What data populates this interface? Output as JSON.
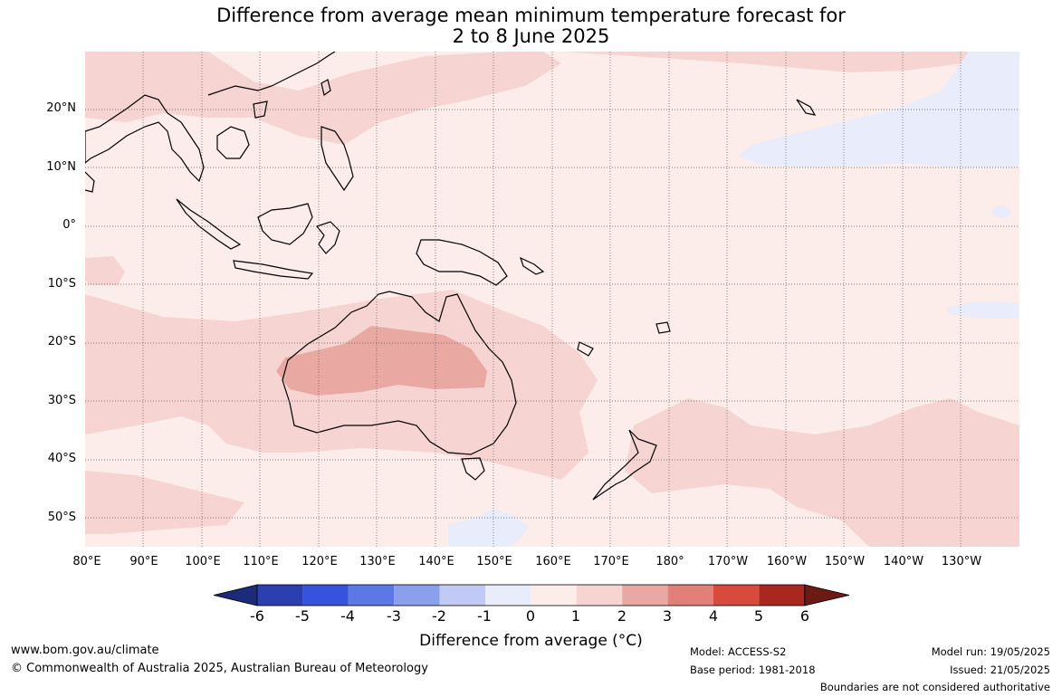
{
  "title": {
    "line1": "Difference from average mean minimum temperature forecast for",
    "line2": "2 to 8 June 2025"
  },
  "latitude_labels": [
    "20°N",
    "10°N",
    "0°",
    "10°S",
    "20°S",
    "30°S",
    "40°S",
    "50°S"
  ],
  "longitude_labels": [
    "80°E",
    "90°E",
    "100°E",
    "110°E",
    "120°E",
    "130°E",
    "140°E",
    "150°E",
    "160°E",
    "170°E",
    "180°",
    "170°W",
    "160°W",
    "150°W",
    "140°W",
    "130°W"
  ],
  "colorbar": {
    "ticks": [
      "-6",
      "-5",
      "-4",
      "-3",
      "-2",
      "-1",
      "0",
      "1",
      "2",
      "3",
      "4",
      "5",
      "6"
    ],
    "colors": [
      "#1c2a7a",
      "#2b3fb0",
      "#3553dc",
      "#5c78e6",
      "#8aa0ec",
      "#c0caf4",
      "#e9ecfb",
      "#fcecea",
      "#f6d4d1",
      "#eaa8a2",
      "#e08078",
      "#d84a3c",
      "#a82820",
      "#6e1a14"
    ],
    "title": "Difference from average (°C)"
  },
  "footer": {
    "website": "www.bom.gov.au/climate",
    "copyright": "© Commonwealth of Australia 2025, Australian Bureau of Meteorology",
    "model": "Model: ACCESS-S2",
    "base_period": "Base period: 1981-2018",
    "model_run": "Model run: 19/05/2025",
    "issued": "Issued: 21/05/2025",
    "disclaimer": "Boundaries are not considered authoritative"
  }
}
